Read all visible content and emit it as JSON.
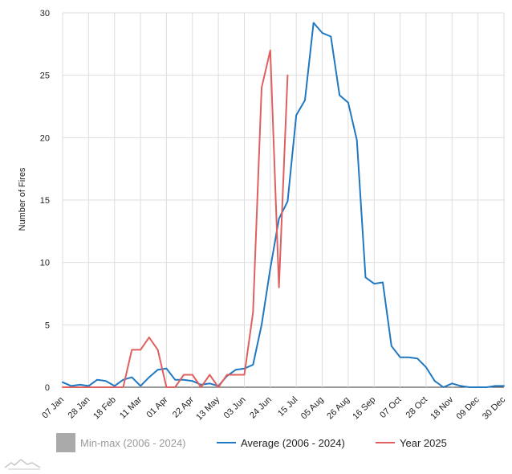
{
  "chart_data": {
    "type": "line",
    "ylabel": "Number of Fires",
    "ylim": [
      0,
      30
    ],
    "yticks": [
      0,
      5,
      10,
      15,
      20,
      25,
      30
    ],
    "grid": true,
    "legend_position": "bottom",
    "x_week_count": 52,
    "xtick_labels": [
      "07 Jan",
      "28 Jan",
      "18 Feb",
      "11 Mar",
      "01 Apr",
      "22 Apr",
      "13 May",
      "03 Jun",
      "24 Jun",
      "15 Jul",
      "05 Aug",
      "26 Aug",
      "16 Sep",
      "07 Oct",
      "28 Oct",
      "18 Nov",
      "09 Dec",
      "30 Dec"
    ],
    "legend": [
      {
        "name": "Min-max (2006 - 2024)",
        "color": "#aaaaaa",
        "muted": true
      },
      {
        "name": "Average (2006 - 2024)",
        "color": "#1f78c1"
      },
      {
        "name": "Year 2025",
        "color": "#e06060"
      }
    ],
    "series": [
      {
        "name": "Average (2006 - 2024)",
        "color": "#1f78c1",
        "values": [
          0.4,
          0.1,
          0.2,
          0.1,
          0.6,
          0.5,
          0.1,
          0.6,
          0.8,
          0.1,
          0.8,
          1.4,
          1.5,
          0.6,
          0.6,
          0.5,
          0.2,
          0.3,
          0.1,
          0.9,
          1.4,
          1.5,
          1.8,
          5.0,
          9.5,
          13.5,
          14.9,
          21.8,
          23.0,
          29.2,
          28.4,
          28.1,
          23.4,
          22.8,
          19.8,
          8.8,
          8.3,
          8.4,
          3.3,
          2.4,
          2.4,
          2.3,
          1.6,
          0.5,
          0.0,
          0.3,
          0.1,
          0.0,
          0.0,
          0.0,
          0.1,
          0.1
        ]
      },
      {
        "name": "Year 2025",
        "color": "#e06060",
        "values": [
          0,
          0,
          0,
          0,
          0,
          0,
          0,
          0,
          3,
          3,
          4,
          3,
          0,
          0,
          1,
          1,
          0,
          1,
          0,
          1,
          1,
          1,
          6,
          24,
          27,
          8,
          25
        ]
      }
    ]
  }
}
